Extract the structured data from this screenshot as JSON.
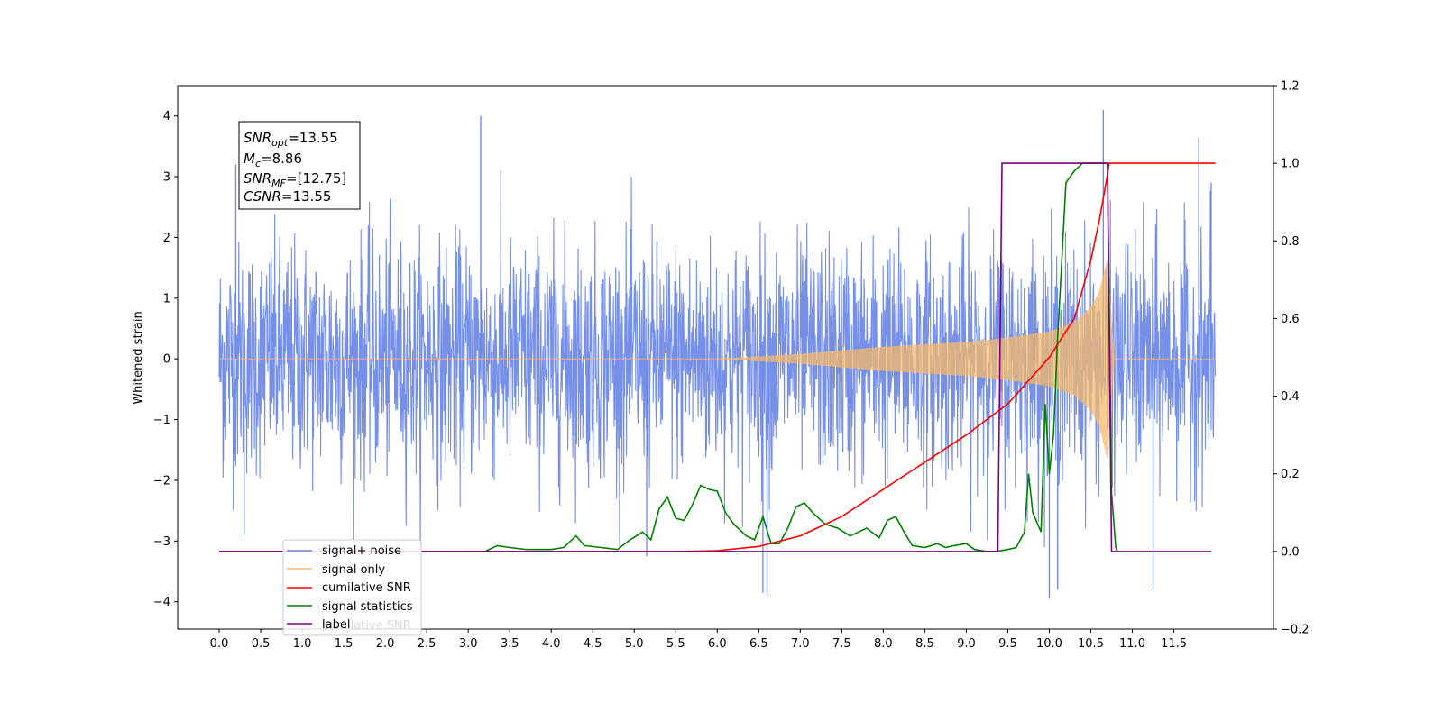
{
  "chart_data": {
    "type": "line",
    "ylabel": "Whitened strain",
    "xlabel": "",
    "title": "",
    "xlim": [
      -0.5,
      12.7
    ],
    "ylim": [
      -4.45,
      4.5
    ],
    "y2lim": [
      -0.2,
      1.2
    ],
    "xticks": [
      "0.0",
      "0.5",
      "1.0",
      "1.5",
      "2.0",
      "2.5",
      "3.0",
      "3.5",
      "4.0",
      "4.5",
      "5.0",
      "5.5",
      "6.0",
      "6.5",
      "7.0",
      "7.5",
      "8.0",
      "8.5",
      "9.0",
      "9.5",
      "10.0",
      "10.5",
      "11.0",
      "11.5"
    ],
    "yticks": [
      "4",
      "3",
      "2",
      "1",
      "0",
      "−1",
      "−2",
      "−3",
      "−4"
    ],
    "y2ticks": [
      "1.2",
      "1.0",
      "0.8",
      "0.6",
      "0.4",
      "0.2",
      "0.0",
      "−0.2"
    ],
    "grid": false,
    "legend_position": "lower-left",
    "annotation": {
      "lines": [
        {
          "var": "SNR",
          "sub": "opt",
          "value": "=13.55"
        },
        {
          "var": "M",
          "sub": "c",
          "value": "=8.86"
        },
        {
          "var": "SNR",
          "sub": "MF",
          "value": "=[12.75]"
        },
        {
          "var": "CSNR",
          "sub": "",
          "value": "=13.55"
        }
      ]
    },
    "legend_hidden_text": "cumilative SNR",
    "series": [
      {
        "name": "signal+ noise",
        "color": "#6a86e6",
        "axis": "left",
        "description_values": {
          "x_start": 0.0,
          "x_end": 12.0,
          "envelope_high_typical": 2.2,
          "envelope_low_typical": -2.2,
          "spikes": [
            [
              0.05,
              -1.7
            ],
            [
              0.2,
              3.2
            ],
            [
              0.3,
              -2.9
            ],
            [
              3.15,
              4.0
            ],
            [
              5.15,
              -3.25
            ],
            [
              6.55,
              -3.85
            ],
            [
              6.6,
              -3.9
            ],
            [
              10.0,
              -3.95
            ],
            [
              10.1,
              -3.8
            ],
            [
              10.65,
              4.1
            ],
            [
              11.25,
              -3.8
            ],
            [
              11.8,
              3.65
            ],
            [
              11.95,
              2.9
            ]
          ]
        }
      },
      {
        "name": "signal only",
        "color": "#f5b96b",
        "axis": "left",
        "x": [
          0.0,
          6.0,
          7.0,
          8.0,
          9.0,
          9.5,
          10.0,
          10.3,
          10.5,
          10.6,
          10.7,
          10.78,
          12.0
        ],
        "amplitude": [
          0.0,
          0.0,
          0.08,
          0.2,
          0.28,
          0.35,
          0.45,
          0.6,
          0.85,
          1.1,
          1.65,
          0.0,
          0.0
        ]
      },
      {
        "name": "cumilative SNR",
        "color": "#ff0000",
        "axis": "right",
        "x": [
          0.0,
          5.5,
          6.0,
          6.5,
          7.0,
          7.5,
          8.0,
          8.5,
          9.0,
          9.5,
          10.0,
          10.3,
          10.5,
          10.6,
          10.7,
          10.72,
          12.0
        ],
        "y": [
          0.0,
          0.0,
          0.002,
          0.013,
          0.04,
          0.09,
          0.16,
          0.23,
          0.3,
          0.38,
          0.5,
          0.6,
          0.75,
          0.85,
          0.97,
          1.0,
          1.0
        ]
      },
      {
        "name": "signal statistics",
        "color": "#008000",
        "axis": "right",
        "x": [
          0.0,
          3.2,
          3.35,
          3.5,
          3.7,
          4.0,
          4.15,
          4.3,
          4.4,
          4.6,
          4.8,
          4.95,
          5.1,
          5.2,
          5.3,
          5.4,
          5.5,
          5.6,
          5.7,
          5.8,
          5.9,
          6.0,
          6.1,
          6.2,
          6.35,
          6.45,
          6.55,
          6.65,
          6.75,
          6.85,
          6.95,
          7.05,
          7.15,
          7.3,
          7.45,
          7.6,
          7.8,
          7.95,
          8.05,
          8.15,
          8.25,
          8.35,
          8.5,
          8.65,
          8.75,
          8.85,
          9.0,
          9.1,
          9.25,
          9.35,
          9.5,
          9.6,
          9.7,
          9.75,
          9.8,
          9.9,
          9.95,
          10.0,
          10.05,
          10.1,
          10.2,
          10.3,
          10.4,
          10.55,
          10.7,
          10.75,
          10.8,
          10.82
        ],
        "y": [
          0.0,
          0.0,
          0.015,
          0.01,
          0.005,
          0.005,
          0.01,
          0.04,
          0.015,
          0.01,
          0.005,
          0.03,
          0.05,
          0.03,
          0.11,
          0.14,
          0.085,
          0.08,
          0.12,
          0.17,
          0.16,
          0.155,
          0.1,
          0.07,
          0.04,
          0.03,
          0.09,
          0.02,
          0.02,
          0.06,
          0.115,
          0.125,
          0.1,
          0.07,
          0.06,
          0.04,
          0.06,
          0.035,
          0.08,
          0.09,
          0.05,
          0.015,
          0.01,
          0.02,
          0.01,
          0.015,
          0.02,
          0.005,
          0.0,
          0.0,
          0.005,
          0.01,
          0.05,
          0.2,
          0.1,
          0.05,
          0.38,
          0.2,
          0.3,
          0.55,
          0.95,
          0.98,
          1.0,
          1.0,
          1.0,
          0.15,
          0.01,
          0.0
        ]
      },
      {
        "name": "label",
        "color": "#7f007f",
        "axis": "right",
        "x": [
          0.0,
          9.38,
          9.43,
          10.7,
          10.75,
          11.95
        ],
        "y": [
          0.0,
          0.0,
          1.0,
          1.0,
          0.0,
          0.0
        ]
      }
    ]
  }
}
